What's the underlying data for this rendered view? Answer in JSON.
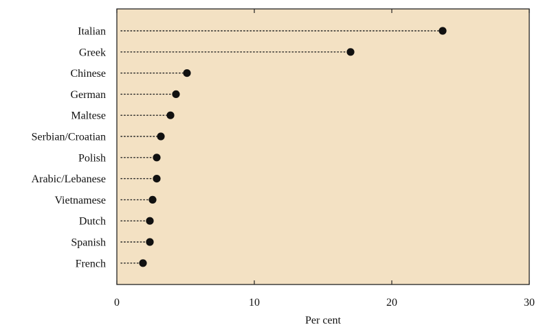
{
  "chart_data": {
    "type": "dot",
    "categories": [
      "Italian",
      "Greek",
      "Chinese",
      "German",
      "Maltese",
      "Serbian/Croatian",
      "Polish",
      "Arabic/Lebanese",
      "Vietnamese",
      "Dutch",
      "Spanish",
      "French"
    ],
    "values": [
      23.7,
      17.0,
      5.1,
      4.3,
      3.9,
      3.2,
      2.9,
      2.9,
      2.6,
      2.4,
      2.4,
      1.9
    ],
    "xlabel": "Per cent",
    "ylabel": "",
    "xlim": [
      0,
      30
    ],
    "xticks": [
      0,
      10,
      20,
      30
    ],
    "xtick_labels": [
      "0",
      "10",
      "20",
      "30"
    ],
    "grid": false,
    "colors": {
      "background": "#f3e1c3",
      "marker": "#111111",
      "leader": "#222222"
    }
  }
}
